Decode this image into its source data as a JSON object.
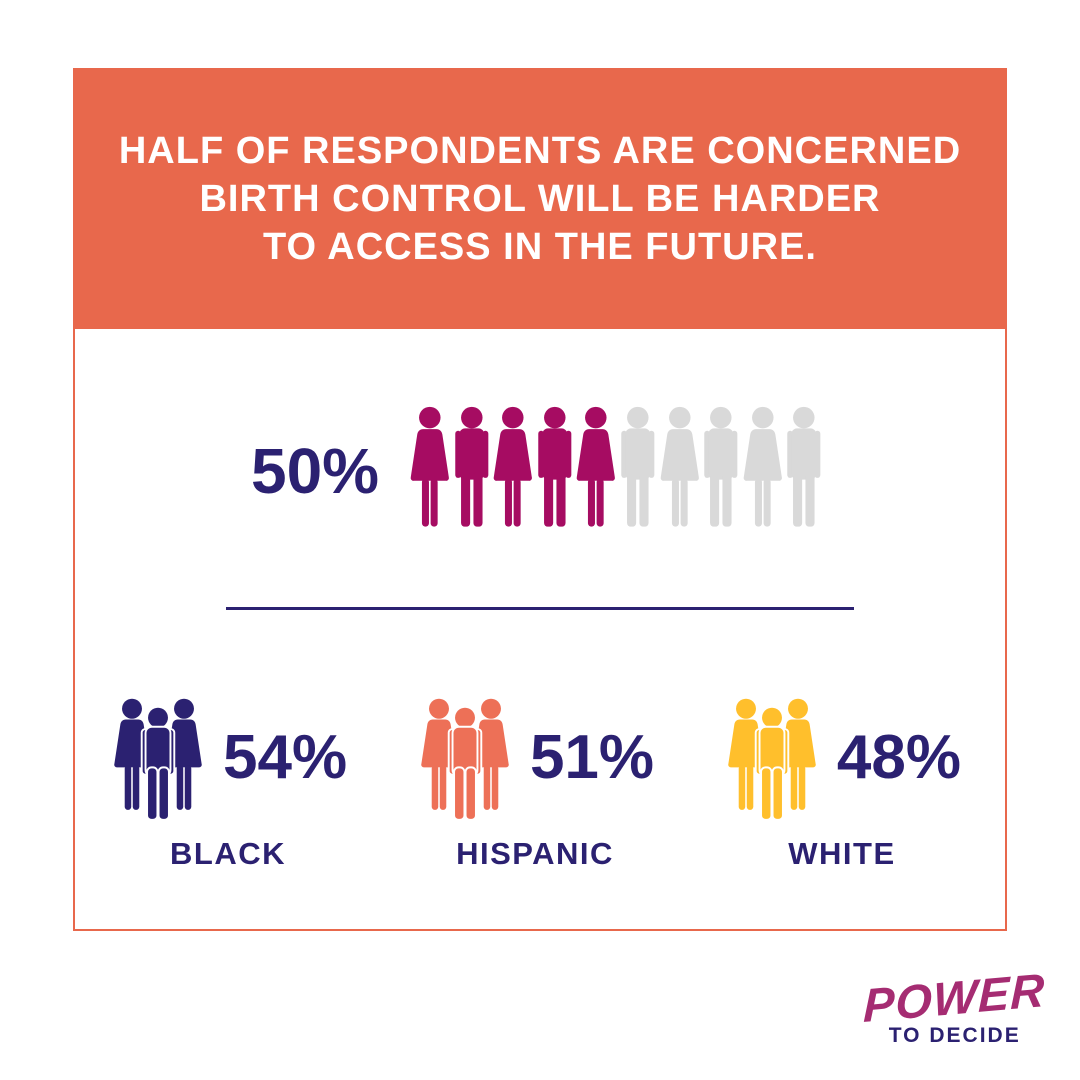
{
  "colors": {
    "coral": "#E8684C",
    "coral_icon": "#ED7057",
    "navy": "#2B2171",
    "magenta": "#A60C62",
    "gray": "#D9D9D9",
    "gold": "#FFBF2C",
    "logo_magenta": "#A52C72",
    "white": "#FFFFFF"
  },
  "header": {
    "lines": [
      "HALF OF RESPONDENTS ARE CONCERNED",
      "BIRTH CONTROL WILL BE HARDER",
      "TO ACCESS IN THE FUTURE."
    ]
  },
  "overall": {
    "percent_label": "50%",
    "icons_filled": 5,
    "icons_total": 10,
    "filled_color": "#A60C62",
    "empty_color": "#D9D9D9",
    "icon_pattern": "alternating-female-male"
  },
  "groups": [
    {
      "label": "BLACK",
      "percent_label": "54%",
      "color": "#2B2171"
    },
    {
      "label": "HISPANIC",
      "percent_label": "51%",
      "color": "#ED7057"
    },
    {
      "label": "WHITE",
      "percent_label": "48%",
      "color": "#FFBF2C"
    }
  ],
  "logo": {
    "brand": "POWER",
    "tagline": "TO DECIDE"
  },
  "chart_data": {
    "type": "pictograph",
    "title": "HALF OF RESPONDENTS ARE CONCERNED BIRTH CONTROL WILL BE HARDER TO ACCESS IN THE FUTURE.",
    "overall": {
      "label": "50%",
      "value_pct": 50,
      "icons_filled": 5,
      "icons_total": 10,
      "filled_color": "#A60C62",
      "empty_color": "#D9D9D9"
    },
    "categories": [
      "BLACK",
      "HISPANIC",
      "WHITE"
    ],
    "values": [
      54,
      51,
      48
    ],
    "value_labels": [
      "54%",
      "51%",
      "48%"
    ],
    "series_colors": [
      "#2B2171",
      "#ED7057",
      "#FFBF2C"
    ],
    "legend_position": "none",
    "grid": false
  }
}
